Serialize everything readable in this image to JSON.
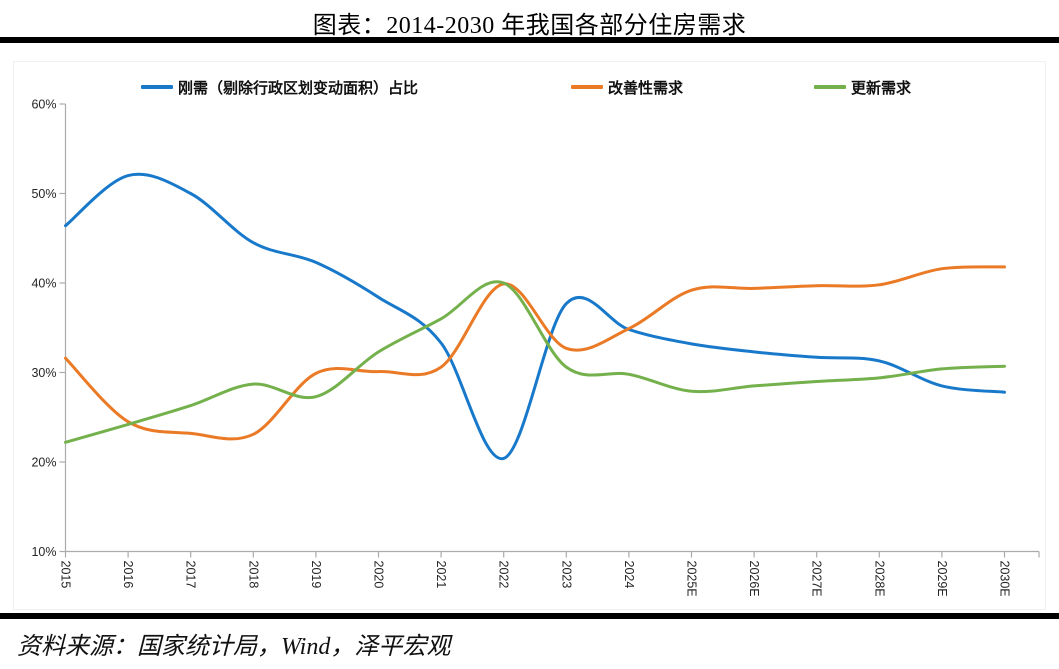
{
  "page": {
    "title": "图表：2014-2030 年我国各部分住房需求",
    "source_note": "资料来源：国家统计局，Wind，泽平宏观"
  },
  "chart_data": {
    "type": "line",
    "title": "图表：2014-2030 年我国各部分住房需求",
    "xlabel": "",
    "ylabel": "",
    "categories": [
      "2015",
      "2016",
      "2017",
      "2018",
      "2019",
      "2020",
      "2021",
      "2022",
      "2023",
      "2024",
      "2025E",
      "2026E",
      "2027E",
      "2028E",
      "2029E",
      "2030E"
    ],
    "series": [
      {
        "name": "刚需（剔除行政区划变动面积）占比",
        "color": "#1879CB",
        "values": [
          46.4,
          52.0,
          50.0,
          44.5,
          42.3,
          38.4,
          33.3,
          20.4,
          37.7,
          34.8,
          33.2,
          32.3,
          31.7,
          31.3,
          28.5,
          27.8
        ]
      },
      {
        "name": "改善性需求",
        "color": "#EA7A26",
        "values": [
          31.6,
          24.5,
          23.2,
          23.1,
          29.9,
          30.1,
          30.6,
          39.9,
          32.7,
          34.9,
          39.2,
          39.4,
          39.7,
          39.8,
          41.6,
          41.8
        ]
      },
      {
        "name": "更新需求",
        "color": "#74B14C",
        "values": [
          22.2,
          24.2,
          26.3,
          28.7,
          27.3,
          32.3,
          36.0,
          40.0,
          30.6,
          29.8,
          27.9,
          28.5,
          29.0,
          29.4,
          30.4,
          30.7
        ]
      }
    ],
    "ylim": [
      10,
      60
    ],
    "y_tick_step": 10,
    "y_tick_labels": [
      "10%",
      "20%",
      "30%",
      "40%",
      "50%",
      "60%"
    ],
    "unit": "%",
    "grid": false,
    "line_smooth": true,
    "legend_position": "top",
    "x_label_rotation_deg": 90,
    "axis_color": "#ABABAB",
    "tick_label_color": "#262626"
  }
}
